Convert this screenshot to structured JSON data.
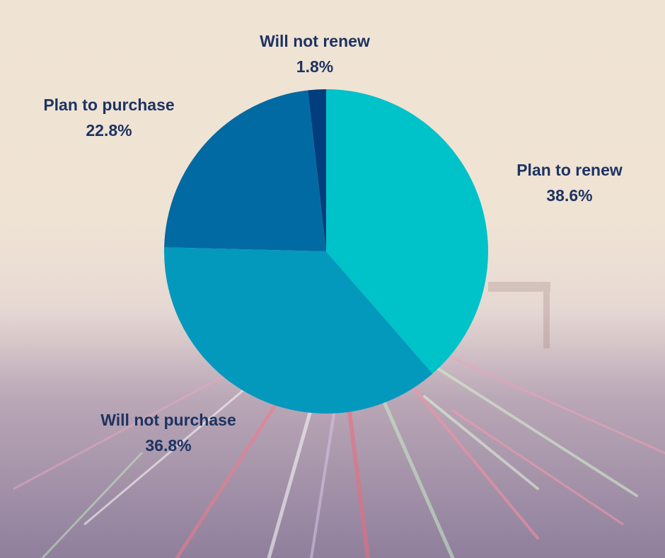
{
  "chart_data": {
    "type": "pie",
    "slices": [
      {
        "label": "Plan to renew",
        "value": 38.6,
        "value_label": "38.6%",
        "color": "#00c2c9"
      },
      {
        "label": "Will not purchase",
        "value": 36.8,
        "value_label": "36.8%",
        "color": "#0399bd"
      },
      {
        "label": "Plan to purchase",
        "value": 22.8,
        "value_label": "22.8%",
        "color": "#026aa2"
      },
      {
        "label": "Will not renew",
        "value": 1.8,
        "value_label": "1.8%",
        "color": "#023e7e"
      }
    ],
    "start_angle_deg": 0,
    "direction": "clockwise",
    "label_color": "#1e3362"
  }
}
